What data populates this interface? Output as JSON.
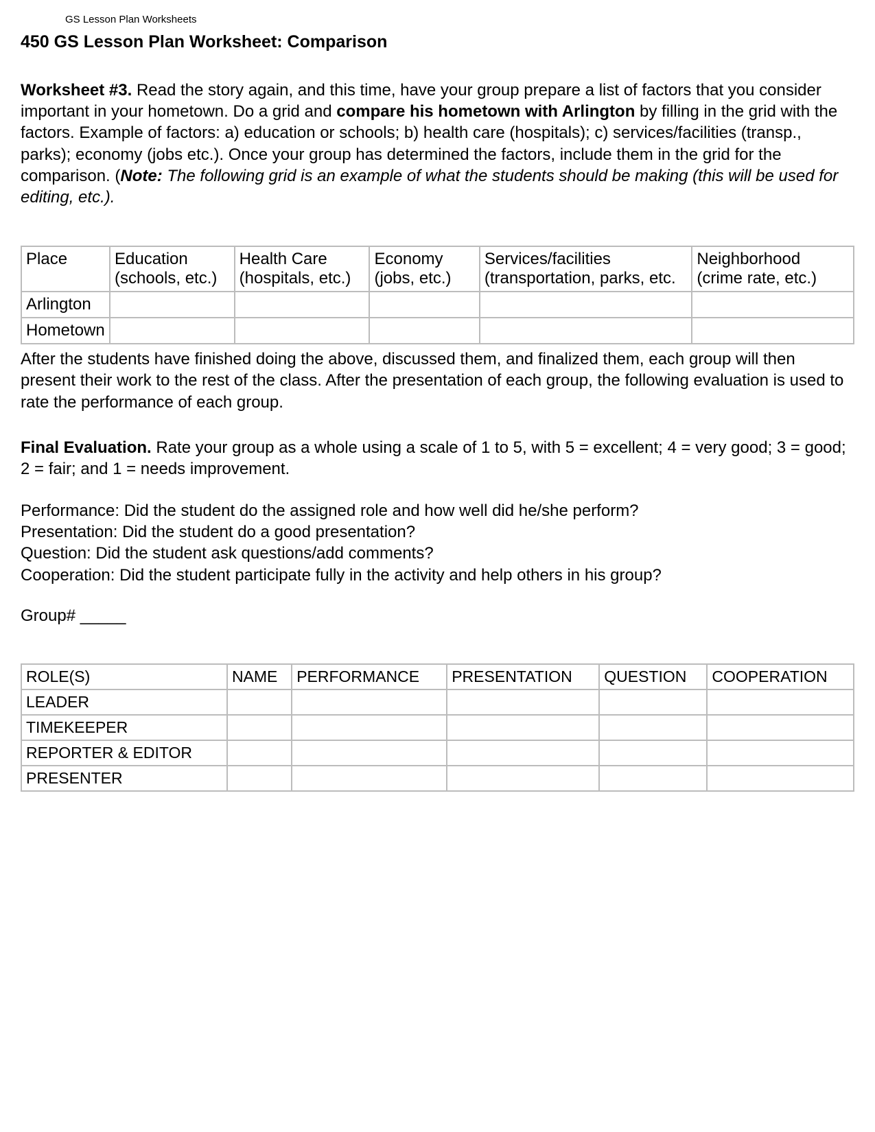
{
  "header_small": "GS Lesson Plan Worksheets",
  "title": "450 GS Lesson Plan Worksheet: Comparison",
  "worksheet": {
    "label": "Worksheet #3.",
    "text_part1": " Read the story again, and this time, have your group prepare a list of factors that you consider important in your hometown. Do a grid and ",
    "bold_phrase": "compare his hometown with Arlington",
    "text_part2": " by filling in the grid with the factors. Example of factors: a) education or schools; b) health care (hospitals); c) services/facilities (transp., parks); economy (jobs etc.). Once your group has determined the factors, include them in the grid for the comparison. (",
    "note_label": "Note:",
    "note_text": " The following grid is an example of what the students should be making (this will be used for editing, etc.)."
  },
  "comparison_table": {
    "headers": [
      "Place",
      "Education (schools, etc.)",
      "Health Care (hospitals, etc.)",
      "Economy (jobs, etc.)",
      "Services/facilities (transportation, parks, etc.",
      "Neighborhood (crime rate, etc.)"
    ],
    "rows": [
      [
        "Arlington",
        "",
        "",
        "",
        "",
        ""
      ],
      [
        "Hometown",
        "",
        "",
        "",
        "",
        ""
      ]
    ]
  },
  "after_table": "After the students have finished doing the above, discussed them, and finalized them, each group will then present their work to the rest of the class. After the presentation of each group, the following evaluation is used to rate the performance of each group.",
  "final_eval": {
    "label": "Final Evaluation.",
    "text": "   Rate your group as a whole using a scale of 1 to 5, with 5 = excellent; 4 = very good; 3 = good; 2 = fair; and 1 = needs improvement."
  },
  "criteria": {
    "performance": "Performance:  Did the student do the assigned role and how well did he/she perform?",
    "presentation": "Presentation:  Did the student do a good presentation?",
    "question": "Question:  Did the student ask questions/add comments?",
    "cooperation": "Cooperation:  Did the student participate fully in the activity and help others in his group?"
  },
  "group_label": "Group# _____",
  "eval_table": {
    "headers": [
      "ROLE(S)",
      "NAME",
      "PERFORMANCE",
      "PRESENTATION",
      "QUESTION",
      "COOPERATION"
    ],
    "rows": [
      [
        "LEADER",
        "",
        "",
        "",
        "",
        ""
      ],
      [
        "TIMEKEEPER",
        "",
        "",
        "",
        "",
        ""
      ],
      [
        "REPORTER & EDITOR",
        "",
        "",
        "",
        "",
        ""
      ],
      [
        "PRESENTER",
        "",
        "",
        "",
        "",
        ""
      ]
    ]
  },
  "colors": {
    "text": "#000000",
    "background": "#ffffff",
    "border": "#bcbcbc"
  }
}
